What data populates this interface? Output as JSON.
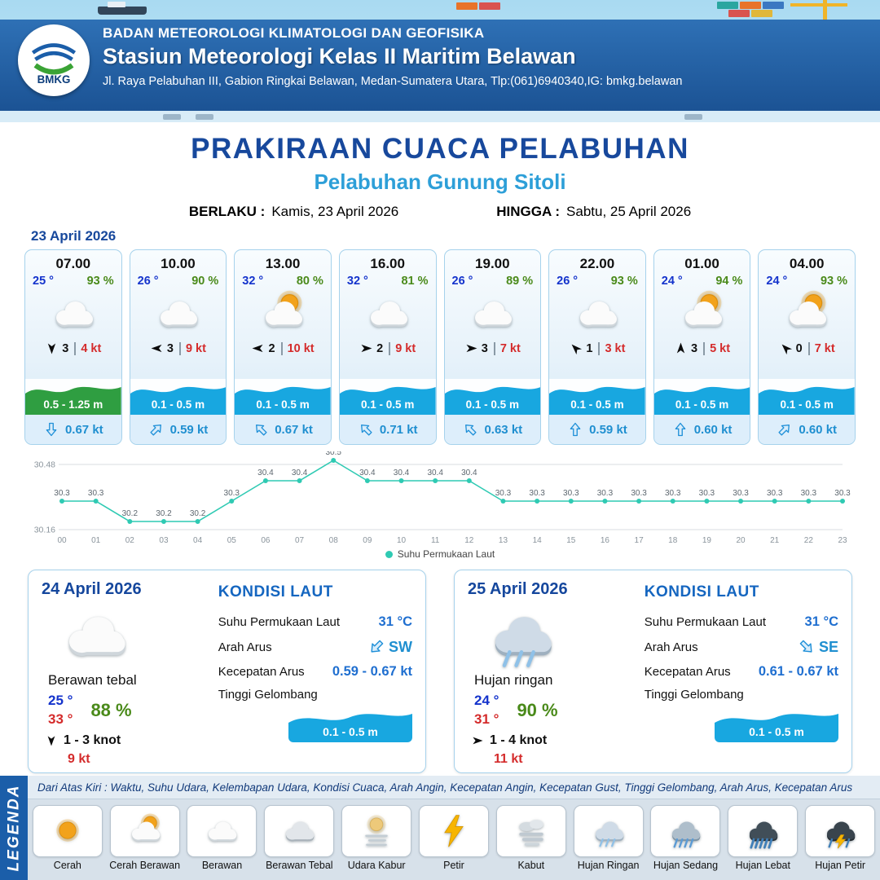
{
  "header": {
    "logo_text": "BMKG",
    "agency": "BADAN METEOROLOGI KLIMATOLOGI DAN GEOFISIKA",
    "station": "Stasiun Meteorologi Kelas II Maritim Belawan",
    "address": "Jl. Raya Pelabuhan III, Gabion Ringkai Belawan, Medan-Sumatera Utara, Tlp:(061)6940340,IG: bmkg.belawan"
  },
  "title": {
    "main": "PRAKIRAAN CUACA PELABUHAN",
    "port": "Pelabuhan Gunung Sitoli",
    "valid_label": "BERLAKU :",
    "valid_value": "Kamis, 23 April 2026",
    "until_label": "HINGGA :",
    "until_value": "Sabtu, 25 April 2026",
    "date_label": "23 April 2026"
  },
  "hourly": [
    {
      "time": "07.00",
      "temp": "25 °",
      "rh": "93 %",
      "icon": "berawan",
      "wind_dir": "S",
      "wind_num": "3",
      "gust": "4 kt",
      "wave": "0.5 - 1.25 m",
      "wave_color": "green",
      "cur_dir": "S",
      "cur": "0.67 kt"
    },
    {
      "time": "10.00",
      "temp": "26 °",
      "rh": "90 %",
      "icon": "berawan",
      "wind_dir": "W",
      "wind_num": "3",
      "gust": "9 kt",
      "wave": "0.1 - 0.5 m",
      "wave_color": "blue",
      "cur_dir": "NE",
      "cur": "0.59 kt"
    },
    {
      "time": "13.00",
      "temp": "32 °",
      "rh": "80 %",
      "icon": "cerah-berawan",
      "wind_dir": "W",
      "wind_num": "2",
      "gust": "10 kt",
      "wave": "0.1 - 0.5 m",
      "wave_color": "blue",
      "cur_dir": "NW",
      "cur": "0.67 kt"
    },
    {
      "time": "16.00",
      "temp": "32 °",
      "rh": "81 %",
      "icon": "berawan",
      "wind_dir": "E",
      "wind_num": "2",
      "gust": "9 kt",
      "wave": "0.1 - 0.5 m",
      "wave_color": "blue",
      "cur_dir": "NW",
      "cur": "0.71 kt"
    },
    {
      "time": "19.00",
      "temp": "26 °",
      "rh": "89 %",
      "icon": "berawan",
      "wind_dir": "E",
      "wind_num": "3",
      "gust": "7 kt",
      "wave": "0.1 - 0.5 m",
      "wave_color": "blue",
      "cur_dir": "NW",
      "cur": "0.63 kt"
    },
    {
      "time": "22.00",
      "temp": "26 °",
      "rh": "93 %",
      "icon": "berawan",
      "wind_dir": "NW",
      "wind_num": "1",
      "gust": "3 kt",
      "wave": "0.1 - 0.5 m",
      "wave_color": "blue",
      "cur_dir": "N",
      "cur": "0.59 kt"
    },
    {
      "time": "01.00",
      "temp": "24 °",
      "rh": "94 %",
      "icon": "cerah-berawan",
      "wind_dir": "N",
      "wind_num": "3",
      "gust": "5 kt",
      "wave": "0.1 - 0.5 m",
      "wave_color": "blue",
      "cur_dir": "N",
      "cur": "0.60 kt"
    },
    {
      "time": "04.00",
      "temp": "24 °",
      "rh": "93 %",
      "icon": "cerah-berawan",
      "wind_dir": "NW",
      "wind_num": "0",
      "gust": "7 kt",
      "wave": "0.1 - 0.5 m",
      "wave_color": "blue",
      "cur_dir": "NE",
      "cur": "0.60 kt"
    }
  ],
  "chart_data": {
    "type": "line",
    "legend": "Suhu Permukaan Laut",
    "x": [
      "00",
      "01",
      "02",
      "03",
      "04",
      "05",
      "06",
      "07",
      "08",
      "09",
      "10",
      "11",
      "12",
      "13",
      "14",
      "15",
      "16",
      "17",
      "18",
      "19",
      "20",
      "21",
      "22",
      "23"
    ],
    "values": [
      30.3,
      30.3,
      30.2,
      30.2,
      30.2,
      30.3,
      30.4,
      30.4,
      30.5,
      30.4,
      30.4,
      30.4,
      30.4,
      30.3,
      30.3,
      30.3,
      30.3,
      30.3,
      30.3,
      30.3,
      30.3,
      30.3,
      30.3,
      30.3
    ],
    "ylim": [
      30.16,
      30.48
    ],
    "yticks": [
      "30.48",
      "30.16"
    ],
    "line_color": "#2fcab3",
    "grid": true,
    "legend_position": "bottom"
  },
  "daily": [
    {
      "date": "24 April 2026",
      "icon": "berawan",
      "condition": "Berawan tebal",
      "temp_min": "25 °",
      "temp_max": "33 °",
      "rh": "88 %",
      "wind_dir": "S",
      "wind": "1 - 3 knot",
      "gust": "9 kt",
      "sea": {
        "title": "KONDISI LAUT",
        "sst_label": "Suhu Permukaan Laut",
        "sst": "31 °C",
        "dir_label": "Arah Arus",
        "dir": "SW",
        "spd_label": "Kecepatan Arus",
        "spd": "0.59 - 0.67 kt",
        "wave_label": "Tinggi Gelombang",
        "wave": "0.1 - 0.5 m"
      }
    },
    {
      "date": "25 April 2026",
      "icon": "hujan-ringan",
      "condition": "Hujan ringan",
      "temp_min": "24 °",
      "temp_max": "31 °",
      "rh": "90 %",
      "wind_dir": "E",
      "wind": "1 - 4 knot",
      "gust": "11 kt",
      "sea": {
        "title": "KONDISI LAUT",
        "sst_label": "Suhu Permukaan Laut",
        "sst": "31 °C",
        "dir_label": "Arah Arus",
        "dir": "SE",
        "spd_label": "Kecepatan Arus",
        "spd": "0.61 - 0.67 kt",
        "wave_label": "Tinggi Gelombang",
        "wave": "0.1 - 0.5 m"
      }
    }
  ],
  "legend": {
    "bar_label": "LEGENDA",
    "note": "Dari Atas Kiri : Waktu, Suhu Udara, Kelembapan Udara, Kondisi Cuaca, Arah Angin, Kecepatan Angin, Kecepatan Gust, Tinggi Gelombang, Arah Arus, Kecepatan Arus",
    "items": [
      {
        "label": "Cerah",
        "icon": "cerah"
      },
      {
        "label": "Cerah Berawan",
        "icon": "cerah-berawan"
      },
      {
        "label": "Berawan",
        "icon": "berawan"
      },
      {
        "label": "Berawan Tebal",
        "icon": "berawan-tebal"
      },
      {
        "label": "Udara Kabur",
        "icon": "udara-kabur"
      },
      {
        "label": "Petir",
        "icon": "petir"
      },
      {
        "label": "Kabut",
        "icon": "kabut"
      },
      {
        "label": "Hujan Ringan",
        "icon": "hujan-ringan"
      },
      {
        "label": "Hujan Sedang",
        "icon": "hujan-sedang"
      },
      {
        "label": "Hujan Lebat",
        "icon": "hujan-lebat"
      },
      {
        "label": "Hujan Petir",
        "icon": "hujan-petir"
      }
    ]
  },
  "colors": {
    "header_blue": "#1d5fa9",
    "title_blue": "#17489c",
    "port_blue": "#2d9fd8",
    "wave_blue": "#18a7e0",
    "wave_green": "#2f9e41",
    "temp_blue": "#1433cc",
    "humidity_green": "#4a8a1a",
    "gust_red": "#d42b2b",
    "sst_line": "#2fcab3"
  }
}
